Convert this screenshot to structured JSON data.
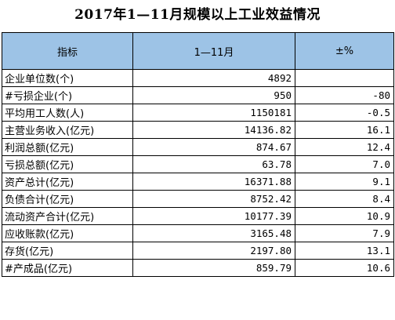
{
  "title": "2017年1—11月规模以上工业效益情况",
  "table": {
    "headers": [
      "指标",
      "1—11月",
      "±%"
    ],
    "rows": [
      {
        "label": "企业单位数(个)",
        "value": "4892",
        "change": ""
      },
      {
        "label": "#亏损企业(个)",
        "value": "950",
        "change": "-80"
      },
      {
        "label": "平均用工人数(人)",
        "value": "1150181",
        "change": "-0.5"
      },
      {
        "label": "主营业务收入(亿元)",
        "value": "14136.82",
        "change": "16.1"
      },
      {
        "label": "利润总额(亿元)",
        "value": "874.67",
        "change": "12.4"
      },
      {
        "label": "亏损总额(亿元)",
        "value": "63.78",
        "change": "7.0"
      },
      {
        "label": "资产总计(亿元)",
        "value": "16371.88",
        "change": "9.1"
      },
      {
        "label": "负债合计(亿元)",
        "value": "8752.42",
        "change": "8.4"
      },
      {
        "label": "流动资产合计(亿元)",
        "value": "10177.39",
        "change": "10.9"
      },
      {
        "label": "应收账款(亿元)",
        "value": "3165.48",
        "change": "7.9"
      },
      {
        "label": "存货(亿元)",
        "value": "2197.80",
        "change": "13.1"
      },
      {
        "label": "#产成品(亿元)",
        "value": "859.79",
        "change": "10.6"
      }
    ]
  },
  "colors": {
    "header_background": "#9dc3e6",
    "border": "#000000"
  }
}
